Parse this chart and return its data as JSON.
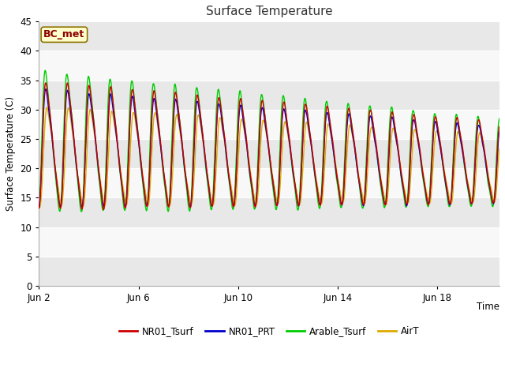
{
  "title": "Surface Temperature",
  "ylabel": "Surface Temperature (C)",
  "xlabel": "Time",
  "ylim": [
    0,
    45
  ],
  "yticks": [
    0,
    5,
    10,
    15,
    20,
    25,
    30,
    35,
    40,
    45
  ],
  "annotation": "BC_met",
  "fig_bg": "#ffffff",
  "plot_bg": "#f0f0f0",
  "band_light": "#f8f8f8",
  "band_dark": "#e8e8e8",
  "line_colors": {
    "NR01_Tsurf": "#cc0000",
    "NR01_PRT": "#0000cc",
    "Arable_Tsurf": "#00cc00",
    "AirT": "#ddaa00"
  },
  "line_width": 1.0,
  "xtick_labels": [
    "Jun 2",
    "Jun 6",
    "Jun 10",
    "Jun 14",
    "Jun 18"
  ],
  "xtick_positions": [
    2,
    6,
    10,
    14,
    18
  ],
  "xmin": 2,
  "xmax": 20.5,
  "num_points": 2000
}
